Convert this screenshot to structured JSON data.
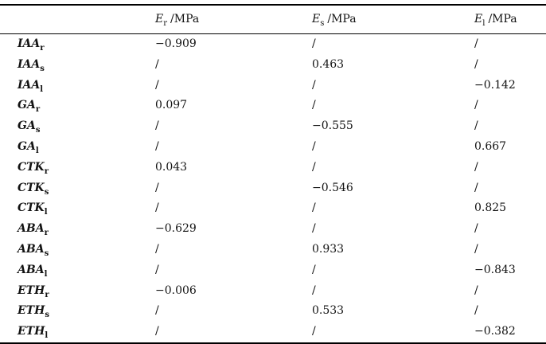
{
  "table": {
    "columns": [
      {
        "symbol": "E",
        "sub": "r",
        "unit": "/MPa"
      },
      {
        "symbol": "E",
        "sub": "s",
        "unit": "/MPa"
      },
      {
        "symbol": "E",
        "sub": "l",
        "unit": "/MPa"
      }
    ],
    "rows": [
      {
        "name": "IAA",
        "sub": "r",
        "values": [
          "−0.909",
          "/",
          "/"
        ]
      },
      {
        "name": "IAA",
        "sub": "s",
        "values": [
          "/",
          "0.463",
          "/"
        ]
      },
      {
        "name": "IAA",
        "sub": "l",
        "values": [
          "/",
          "/",
          "−0.142"
        ]
      },
      {
        "name": "GA",
        "sub": "r",
        "values": [
          "0.097",
          "/",
          "/"
        ]
      },
      {
        "name": "GA",
        "sub": "s",
        "values": [
          "/",
          "−0.555",
          "/"
        ]
      },
      {
        "name": "GA",
        "sub": "l",
        "values": [
          "/",
          "/",
          "0.667"
        ]
      },
      {
        "name": "CTK",
        "sub": "r",
        "values": [
          "0.043",
          "/",
          "/"
        ]
      },
      {
        "name": "CTK",
        "sub": "s",
        "values": [
          "/",
          "−0.546",
          "/"
        ]
      },
      {
        "name": "CTK",
        "sub": "l",
        "values": [
          "/",
          "/",
          "0.825"
        ]
      },
      {
        "name": "ABA",
        "sub": "r",
        "values": [
          "−0.629",
          "/",
          "/"
        ]
      },
      {
        "name": "ABA",
        "sub": "s",
        "values": [
          "/",
          "0.933",
          "/"
        ]
      },
      {
        "name": "ABA",
        "sub": "l",
        "values": [
          "/",
          "/",
          "−0.843"
        ]
      },
      {
        "name": "ETH",
        "sub": "r",
        "values": [
          "−0.006",
          "/",
          "/"
        ]
      },
      {
        "name": "ETH",
        "sub": "s",
        "values": [
          "/",
          "0.533",
          "/"
        ]
      },
      {
        "name": "ETH",
        "sub": "l",
        "values": [
          "/",
          "/",
          "−0.382"
        ]
      }
    ],
    "colors": {
      "text": "#131313",
      "rule": "#000000",
      "background": "#ffffff"
    }
  }
}
